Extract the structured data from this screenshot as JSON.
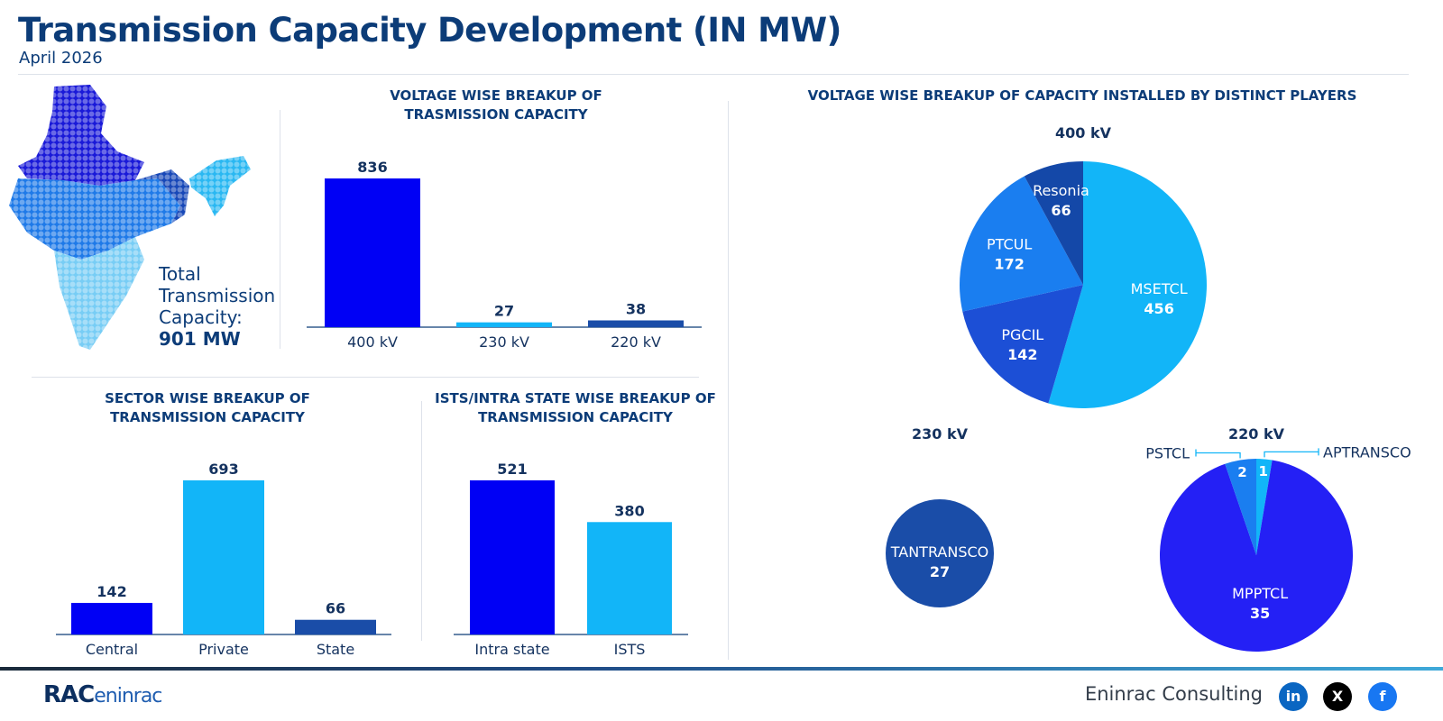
{
  "header": {
    "title": "Transmission Capacity Development (IN MW)",
    "subtitle": "April 2026"
  },
  "total": {
    "line1": "Total",
    "line2": "Transmission",
    "line3": "Capacity:",
    "value": "901 MW"
  },
  "colors": {
    "navy": "#0c3c78",
    "blue": "#0000f5",
    "sky": "#12b5f8",
    "darkblue": "#1a4da8",
    "mid": "#1a7ef0",
    "royal": "#1c4fd6",
    "violet": "#2420f5",
    "resonia": "#1448a8"
  },
  "sections": {
    "voltage_title_1": "VOLTAGE WISE BREAKUP OF",
    "voltage_title_2": "TRASMISSION CAPACITY",
    "sector_title_1": "SECTOR WISE BREAKUP OF",
    "sector_title_2": "TRANSMISSION CAPACITY",
    "ists_title_1": "ISTS/INTRA STATE WISE BREAKUP OF",
    "ists_title_2": "TRANSMISSION CAPACITY",
    "players_title": "VOLTAGE WISE BREAKUP OF CAPACITY INSTALLED BY DISTINCT PLAYERS"
  },
  "chart_data": [
    {
      "id": "voltage",
      "type": "bar",
      "title": "VOLTAGE WISE BREAKUP OF TRASMISSION CAPACITY",
      "categories": [
        "400 kV",
        "230 kV",
        "220 kV"
      ],
      "values": [
        836,
        27,
        38
      ],
      "colors": [
        "#0000f5",
        "#12b5f8",
        "#1a4da8"
      ]
    },
    {
      "id": "sector",
      "type": "bar",
      "title": "SECTOR WISE BREAKUP OF TRANSMISSION CAPACITY",
      "categories": [
        "Central",
        "Private",
        "State"
      ],
      "values": [
        142,
        693,
        66
      ],
      "colors": [
        "#0000f5",
        "#12b5f8",
        "#1a4da8"
      ]
    },
    {
      "id": "ists",
      "type": "bar",
      "title": "ISTS/INTRA STATE WISE BREAKUP OF TRANSMISSION CAPACITY",
      "categories": [
        "Intra state",
        "ISTS"
      ],
      "values": [
        521,
        380
      ],
      "colors": [
        "#0000f5",
        "#12b5f8"
      ]
    },
    {
      "id": "pie400",
      "type": "pie",
      "title": "400 kV",
      "labels": [
        "MSETCL",
        "PGCIL",
        "PTCUL",
        "Resonia"
      ],
      "values": [
        456,
        142,
        172,
        66
      ],
      "colors": [
        "#12b5f8",
        "#1c4fd6",
        "#1a7ef0",
        "#1448a8"
      ]
    },
    {
      "id": "pie230",
      "type": "pie",
      "title": "230 kV",
      "labels": [
        "TANTRANSCO"
      ],
      "values": [
        27
      ],
      "colors": [
        "#1a4da8"
      ]
    },
    {
      "id": "pie220",
      "type": "pie",
      "title": "220 kV",
      "labels": [
        "APTRANSCO",
        "MPPTCL",
        "PSTCL"
      ],
      "values": [
        1,
        35,
        2
      ],
      "colors": [
        "#12b5f8",
        "#2420f5",
        "#1a7ef0"
      ]
    }
  ],
  "footer": {
    "company": "Eninrac Consulting",
    "logo_main": "RAC",
    "logo_sub": "eninrac",
    "social": [
      "in",
      "X",
      "f"
    ]
  }
}
